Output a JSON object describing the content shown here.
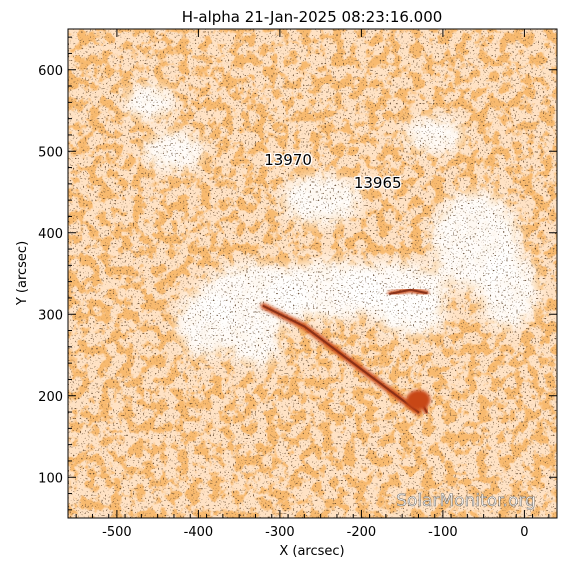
{
  "chart_data": {
    "type": "heatmap",
    "title": "H-alpha 21-Jan-2025 08:23:16.000",
    "xlabel": "X (arcsec)",
    "ylabel": "Y (arcsec)",
    "xlim": [
      -560,
      40
    ],
    "ylim": [
      50,
      650
    ],
    "xticks": [
      -500,
      -400,
      -300,
      -200,
      -100,
      0
    ],
    "yticks": [
      100,
      200,
      300,
      400,
      500,
      600
    ],
    "colormap": [
      "#ffffff",
      "#ffdcb4",
      "#f07d28",
      "#c84614",
      "#782814"
    ],
    "annotations": [
      {
        "text": "13970",
        "x": -290,
        "y": 483
      },
      {
        "text": "13965",
        "x": -180,
        "y": 455
      }
    ],
    "filaments": [
      {
        "points": [
          [
            -320,
            310
          ],
          [
            -270,
            285
          ],
          [
            -230,
            255
          ],
          [
            -190,
            225
          ],
          [
            -150,
            195
          ],
          [
            -130,
            180
          ]
        ]
      },
      {
        "points": [
          [
            -165,
            325
          ],
          [
            -140,
            330
          ],
          [
            -120,
            326
          ]
        ]
      },
      {
        "points": [
          [
            -135,
            200
          ],
          [
            -125,
            190
          ],
          [
            -120,
            180
          ]
        ]
      }
    ],
    "watermark": "SolarMonitor.org"
  }
}
